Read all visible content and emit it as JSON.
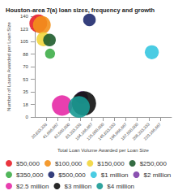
{
  "chart_data": {
    "type": "scatter",
    "marker": "bubble",
    "title": "Houston-area 7(a) loan sizes, frequency and growth",
    "x_label": "Total Loan Volume Awarded per Loan Size",
    "y_label": "Number of Loans Awarded per Loan Size",
    "xlim": [
      0,
      250000000
    ],
    "xticks": [
      {
        "value": 20833333.33,
        "label": "20,833,333"
      },
      {
        "value": 41666666.67,
        "label": "41,666,667"
      },
      {
        "value": 62500000,
        "label": "62,500,000"
      },
      {
        "value": 83333333.33,
        "label": "83,333,333"
      },
      {
        "value": 104166666.67,
        "label": "104,166,667"
      },
      {
        "value": 125000000,
        "label": "125,000,000"
      },
      {
        "value": 145833333.33,
        "label": "145,833,333"
      },
      {
        "value": 166666666.67,
        "label": "166,666,667"
      },
      {
        "value": 187500000,
        "label": "187,500,000"
      },
      {
        "value": 208333333.33,
        "label": "208,333,333"
      },
      {
        "value": 229166666.67,
        "label": "229,166,667"
      }
    ],
    "ylim": [
      0,
      140
    ],
    "yticks": [
      0,
      {
        "value": 17.5,
        "label": "18"
      },
      35,
      {
        "value": 52.5,
        "label": "53"
      },
      70,
      {
        "value": 87.5,
        "label": "88"
      },
      105,
      {
        "value": 122.5,
        "label": "123"
      },
      140
    ],
    "grid": false,
    "legend": "bottom",
    "series": [
      {
        "name": "$50,000",
        "color": "#e8202a",
        "x": [
          6500000
        ],
        "values": [
          130
        ],
        "size": [
          100
        ]
      },
      {
        "name": "$100,000",
        "color": "#f39019",
        "x": [
          13000000
        ],
        "values": [
          128
        ],
        "size": [
          100
        ]
      },
      {
        "name": "$150,000",
        "color": "#f2d53c",
        "x": [
          16000000
        ],
        "values": [
          108
        ],
        "size": [
          50
        ]
      },
      {
        "name": "$250,000",
        "color": "#1f5c2e",
        "x": [
          27000000
        ],
        "values": [
          107
        ],
        "size": [
          36
        ]
      },
      {
        "name": "$350,000",
        "color": "#3fae49",
        "x": [
          28000000
        ],
        "values": [
          88
        ],
        "size": [
          16
        ]
      },
      {
        "name": "$500,000",
        "color": "#1f2a6e",
        "x": [
          100000000
        ],
        "values": [
          135
        ],
        "size": [
          36
        ]
      },
      {
        "name": "$1 million",
        "color": "#36c6e0",
        "x": [
          214000000
        ],
        "values": [
          90
        ],
        "size": [
          50
        ]
      },
      {
        "name": "$2 million",
        "color": "#7e3fa8",
        "x": [
          86000000
        ],
        "values": [
          27
        ],
        "size": [
          36
        ]
      },
      {
        "name": "$2.5 million",
        "color": "#e62aa6",
        "x": [
          50000000
        ],
        "values": [
          16
        ],
        "size": [
          144
        ]
      },
      {
        "name": "$3 million",
        "color": "#111111",
        "x": [
          90000000
        ],
        "values": [
          19
        ],
        "size": [
          225
        ]
      },
      {
        "name": "$4 million",
        "color": "#1a9a94",
        "x": [
          81000000
        ],
        "values": [
          14
        ],
        "size": [
          169
        ]
      }
    ]
  }
}
